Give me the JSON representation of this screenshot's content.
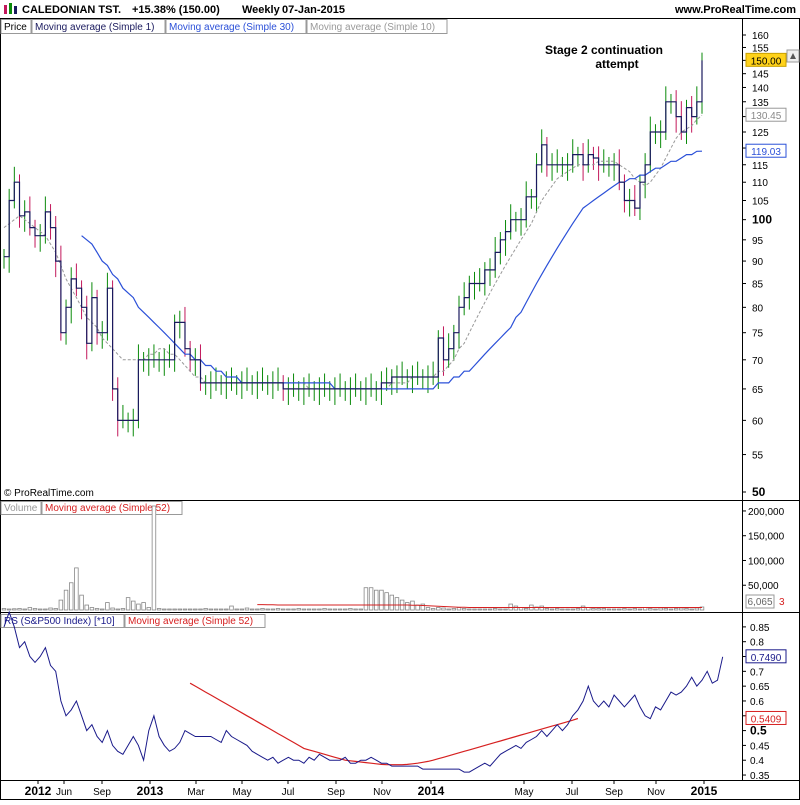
{
  "header": {
    "title": "CALEDONIAN TST.",
    "change": "+15.38% (150.00)",
    "period": "Weekly",
    "date": "07-Jan-2015",
    "site": "www.ProRealTime.com"
  },
  "copyright": "© ProRealTime.com",
  "annotation": {
    "line1": "Stage 2 continuation",
    "line2": "attempt"
  },
  "price_panel": {
    "legend": [
      "Price",
      "Moving average (Simple 1)",
      "Moving average (Simple 30)",
      "Moving average (Simple 10)"
    ],
    "ticks": [
      "160",
      "155",
      "150",
      "145",
      "140",
      "135",
      "130",
      "125",
      "120",
      "115",
      "110",
      "105",
      "100",
      "95",
      "90",
      "85",
      "80",
      "75",
      "70",
      "65",
      "60",
      "55",
      "50"
    ],
    "tags": {
      "last": "150.00",
      "ma10": "130.45",
      "ma30": "119.03"
    }
  },
  "volume_panel": {
    "legend": [
      "Volume",
      "Moving average (Simple 52)"
    ],
    "ticks": [
      "200,000",
      "150,000",
      "100,000",
      "50,000"
    ],
    "tag": "6,065",
    "tag_suffix": "3"
  },
  "rs_panel": {
    "legend": [
      "RS (S&P500 Index) [*10]",
      "Moving average (Simple 52)"
    ],
    "ticks": [
      "0.85",
      "0.8",
      "0.75",
      "0.7",
      "0.65",
      "0.6",
      "0.55",
      "0.5",
      "0.45",
      "0.4",
      "0.35"
    ],
    "tags": {
      "rs": "0.7490",
      "ma": "0.5409"
    }
  },
  "x_axis": [
    "2012",
    "Jun",
    "Sep",
    "2013",
    "Mar",
    "May",
    "Jul",
    "Sep",
    "Nov",
    "2014",
    "May",
    "Jul",
    "Sep",
    "Nov",
    "2015"
  ],
  "colors": {
    "up": "#0a8a0a",
    "down": "#c2185b",
    "ma1": "#1a1a5e",
    "ma30": "#2b50d8",
    "ma10": "#999999",
    "rs": "#1a1a8a",
    "rs_ma": "#d62020",
    "volume": "#888888",
    "vol_ma": "#d62020"
  },
  "chart_data": [
    {
      "type": "line",
      "title": "CALEDONIAN TST. Weekly",
      "series": [
        {
          "name": "Moving average (Simple 1)",
          "values": [
            91,
            105,
            110,
            101,
            102,
            98,
            96,
            96,
            102,
            98,
            90,
            75,
            80,
            86,
            84,
            80,
            73,
            82,
            75,
            75,
            84,
            65,
            60,
            60,
            60,
            60,
            70,
            70,
            70,
            70,
            70,
            70,
            70,
            77,
            77,
            72,
            70,
            70,
            66,
            66,
            66,
            66,
            66,
            66,
            66,
            66,
            66,
            66,
            66,
            66,
            66,
            66,
            66,
            66,
            65,
            65,
            65,
            65,
            65,
            65,
            65,
            65,
            65,
            65,
            65,
            65,
            65,
            65,
            65,
            65,
            65,
            65,
            65,
            66,
            66,
            67,
            67,
            67,
            67,
            67,
            67,
            67,
            67,
            67,
            74,
            70,
            72,
            75,
            80,
            82,
            85,
            85,
            85,
            88,
            88,
            92,
            95,
            97,
            100,
            100,
            100,
            106,
            106,
            115,
            121,
            115,
            115,
            115,
            115,
            115,
            118,
            118,
            115,
            118,
            117,
            115,
            115,
            115,
            115,
            110,
            105,
            105,
            103,
            110,
            115,
            125,
            125,
            125,
            135,
            135,
            130,
            125,
            133,
            130,
            135,
            150
          ]
        },
        {
          "name": "Moving average (Simple 10)",
          "values": [
            98,
            99,
            100,
            101,
            100,
            99,
            98,
            97,
            96,
            94,
            92,
            89,
            86,
            84,
            82,
            80,
            78,
            77,
            76,
            74,
            73,
            72,
            71,
            70,
            70,
            70,
            70,
            70,
            71,
            71,
            72,
            72,
            71,
            71,
            70,
            69,
            68,
            67,
            67,
            66,
            66,
            66,
            66,
            66,
            66,
            66,
            66,
            66,
            66,
            66,
            66,
            66,
            66,
            66,
            66,
            66,
            66,
            66,
            66,
            65,
            65,
            65,
            65,
            65,
            65,
            65,
            65,
            65,
            65,
            65,
            65,
            65,
            65,
            65,
            65,
            66,
            66,
            66,
            66,
            67,
            67,
            67,
            67,
            67,
            68,
            68,
            69,
            70,
            72,
            73,
            75,
            77,
            79,
            81,
            83,
            85,
            87,
            89,
            91,
            93,
            95,
            97,
            99,
            102,
            105,
            107,
            109,
            111,
            112,
            113,
            114,
            115,
            115,
            115,
            115,
            116,
            116,
            116,
            116,
            115,
            114,
            113,
            111,
            110,
            109,
            110,
            112,
            114,
            117,
            120,
            123,
            125,
            126,
            127,
            129,
            130.45
          ]
        },
        {
          "name": "Moving average (Simple 30)",
          "values": [
            null,
            null,
            null,
            null,
            null,
            null,
            null,
            null,
            null,
            null,
            null,
            null,
            null,
            null,
            null,
            96,
            95,
            94,
            92,
            90,
            89,
            87,
            86,
            84,
            83,
            82,
            80,
            79,
            78,
            77,
            76,
            75,
            74,
            73,
            72,
            71,
            71,
            70,
            70,
            69,
            69,
            68,
            68,
            67,
            67,
            67,
            66,
            66,
            66,
            66,
            66,
            66,
            66,
            66,
            66,
            66,
            66,
            66,
            66,
            66,
            66,
            66,
            66,
            66,
            65,
            65,
            65,
            65,
            65,
            65,
            65,
            65,
            65,
            65,
            65,
            65,
            65,
            65,
            65,
            65,
            65,
            65,
            65,
            65,
            66,
            66,
            66,
            67,
            67,
            68,
            68,
            69,
            70,
            71,
            72,
            73,
            74,
            75,
            76,
            78,
            79,
            81,
            83,
            85,
            87,
            89,
            91,
            93,
            95,
            97,
            99,
            101,
            103,
            104,
            105,
            106,
            107,
            108,
            109,
            110,
            110,
            111,
            111,
            112,
            112,
            113,
            114,
            114,
            115,
            116,
            116,
            117,
            118,
            118,
            119,
            119.03
          ]
        }
      ],
      "ylim": [
        50,
        160
      ],
      "scale": "log"
    },
    {
      "type": "bar",
      "title": "Volume",
      "values": [
        3000,
        2000,
        2500,
        3000,
        2000,
        5000,
        3000,
        2000,
        2000,
        4000,
        3000,
        20000,
        40000,
        55000,
        85000,
        30000,
        10000,
        5000,
        3000,
        2000,
        15000,
        4000,
        2000,
        3000,
        25000,
        18000,
        12000,
        15000,
        5000,
        210000,
        3000,
        2000,
        2000,
        2000,
        2000,
        2000,
        2000,
        2000,
        2000,
        3000,
        2000,
        2000,
        2000,
        2000,
        8000,
        2000,
        2000,
        4000,
        2000,
        2000,
        3000,
        2000,
        2000,
        3000,
        2000,
        2000,
        2000,
        3000,
        2000,
        2000,
        2000,
        2000,
        3000,
        2000,
        2000,
        2000,
        2000,
        3000,
        2000,
        2000,
        45000,
        45000,
        40000,
        40000,
        35000,
        30000,
        25000,
        20000,
        15000,
        18000,
        10000,
        12000,
        5000,
        3000,
        5000,
        4000,
        2000,
        3000,
        5000,
        3000,
        2000,
        2000,
        2000,
        2000,
        2000,
        3000,
        2000,
        2000,
        12000,
        8000,
        5000,
        3000,
        10000,
        6000,
        8000,
        3000,
        2000,
        3000,
        2000,
        2000,
        2000,
        3000,
        8000,
        5000,
        3000,
        3000,
        3000,
        2000,
        2000,
        2000,
        3000,
        2000,
        3000,
        2000,
        5000,
        3000,
        2000,
        4000,
        3000,
        2000,
        3000,
        4000,
        3000,
        2000,
        4000,
        6065
      ],
      "series": [
        {
          "name": "Moving average (Simple 52)",
          "values": [
            null,
            null,
            null,
            null,
            null,
            null,
            null,
            null,
            null,
            null,
            null,
            null,
            null,
            null,
            null,
            null,
            null,
            null,
            null,
            null,
            null,
            null,
            null,
            null,
            null,
            null,
            null,
            null,
            null,
            null,
            null,
            null,
            null,
            null,
            null,
            null,
            null,
            null,
            null,
            null,
            null,
            null,
            null,
            null,
            null,
            null,
            null,
            null,
            null,
            11000,
            11000,
            10500,
            10500,
            10000,
            10000,
            10000,
            10000,
            10000,
            10000,
            10000,
            10000,
            10000,
            10000,
            10000,
            10000,
            10000,
            10000,
            10000,
            10000,
            10000,
            10000,
            10000,
            10000,
            10000,
            10000,
            10000,
            10000,
            10000,
            10000,
            9500,
            9500,
            9000,
            8500,
            8000,
            7500,
            7000,
            6500,
            6000,
            5500,
            5500,
            5000,
            5000,
            5000,
            5000,
            5000,
            5000,
            5000,
            5000,
            5000,
            5000,
            5000,
            5000,
            5000,
            5000,
            5000,
            5000,
            5000,
            5000,
            5000,
            5000,
            5000,
            5000,
            5000,
            5000,
            5000,
            5000,
            5000,
            5000,
            5000,
            5000,
            5000,
            5000,
            5000,
            5000,
            5000,
            5000,
            5000,
            5000,
            5000,
            5000,
            5000,
            5000,
            5000,
            5000,
            5000,
            5000
          ]
        }
      ],
      "ylim": [
        0,
        210000
      ]
    },
    {
      "type": "line",
      "title": "RS (S&P500 Index) [*10]",
      "series": [
        {
          "name": "RS (S&P500 Index) [*10]",
          "values": [
            0.85,
            0.9,
            0.85,
            0.78,
            0.8,
            0.75,
            0.73,
            0.75,
            0.78,
            0.72,
            0.7,
            0.6,
            0.55,
            0.57,
            0.6,
            0.55,
            0.5,
            0.52,
            0.48,
            0.46,
            0.5,
            0.45,
            0.43,
            0.42,
            0.45,
            0.48,
            0.45,
            0.4,
            0.5,
            0.55,
            0.48,
            0.45,
            0.43,
            0.44,
            0.46,
            0.5,
            0.49,
            0.48,
            0.48,
            0.48,
            0.48,
            0.47,
            0.46,
            0.5,
            0.48,
            0.47,
            0.46,
            0.45,
            0.43,
            0.42,
            0.41,
            0.4,
            0.41,
            0.39,
            0.4,
            0.41,
            0.4,
            0.4,
            0.39,
            0.41,
            0.4,
            0.42,
            0.41,
            0.4,
            0.4,
            0.4,
            0.41,
            0.39,
            0.39,
            0.4,
            0.4,
            0.41,
            0.4,
            0.39,
            0.39,
            0.38,
            0.38,
            0.38,
            0.38,
            0.38,
            0.38,
            0.37,
            0.37,
            0.37,
            0.37,
            0.37,
            0.37,
            0.37,
            0.37,
            0.36,
            0.36,
            0.37,
            0.38,
            0.39,
            0.38,
            0.4,
            0.42,
            0.43,
            0.44,
            0.45,
            0.44,
            0.46,
            0.47,
            0.48,
            0.5,
            0.48,
            0.5,
            0.52,
            0.5,
            0.52,
            0.55,
            0.57,
            0.6,
            0.65,
            0.6,
            0.58,
            0.6,
            0.58,
            0.62,
            0.6,
            0.58,
            0.6,
            0.62,
            0.58,
            0.55,
            0.54,
            0.58,
            0.57,
            0.6,
            0.63,
            0.62,
            0.63,
            0.65,
            0.68,
            0.65,
            0.67,
            0.7,
            0.66,
            0.67,
            0.749
          ]
        },
        {
          "name": "Moving average (Simple 52)",
          "values": [
            null,
            null,
            null,
            null,
            null,
            null,
            null,
            null,
            null,
            null,
            null,
            null,
            null,
            null,
            null,
            null,
            null,
            null,
            null,
            null,
            null,
            null,
            null,
            null,
            null,
            null,
            null,
            null,
            null,
            null,
            null,
            null,
            null,
            null,
            null,
            null,
            0.66,
            0.65,
            0.64,
            0.63,
            0.62,
            0.61,
            0.6,
            0.59,
            0.58,
            0.57,
            0.56,
            0.55,
            0.54,
            0.53,
            0.52,
            0.51,
            0.5,
            0.49,
            0.48,
            0.47,
            0.46,
            0.45,
            0.44,
            0.435,
            0.43,
            0.425,
            0.42,
            0.415,
            0.41,
            0.405,
            0.4,
            0.398,
            0.396,
            0.394,
            0.392,
            0.39,
            0.388,
            0.386,
            0.385,
            0.385,
            0.385,
            0.385,
            0.386,
            0.388,
            0.39,
            0.393,
            0.396,
            0.4,
            0.405,
            0.41,
            0.415,
            0.42,
            0.425,
            0.43,
            0.435,
            0.44,
            0.445,
            0.45,
            0.455,
            0.46,
            0.465,
            0.47,
            0.475,
            0.48,
            0.485,
            0.49,
            0.495,
            0.5,
            0.505,
            0.51,
            0.515,
            0.52,
            0.525,
            0.53,
            0.535,
            0.5409
          ]
        }
      ],
      "ylim": [
        0.34,
        0.88
      ]
    }
  ]
}
